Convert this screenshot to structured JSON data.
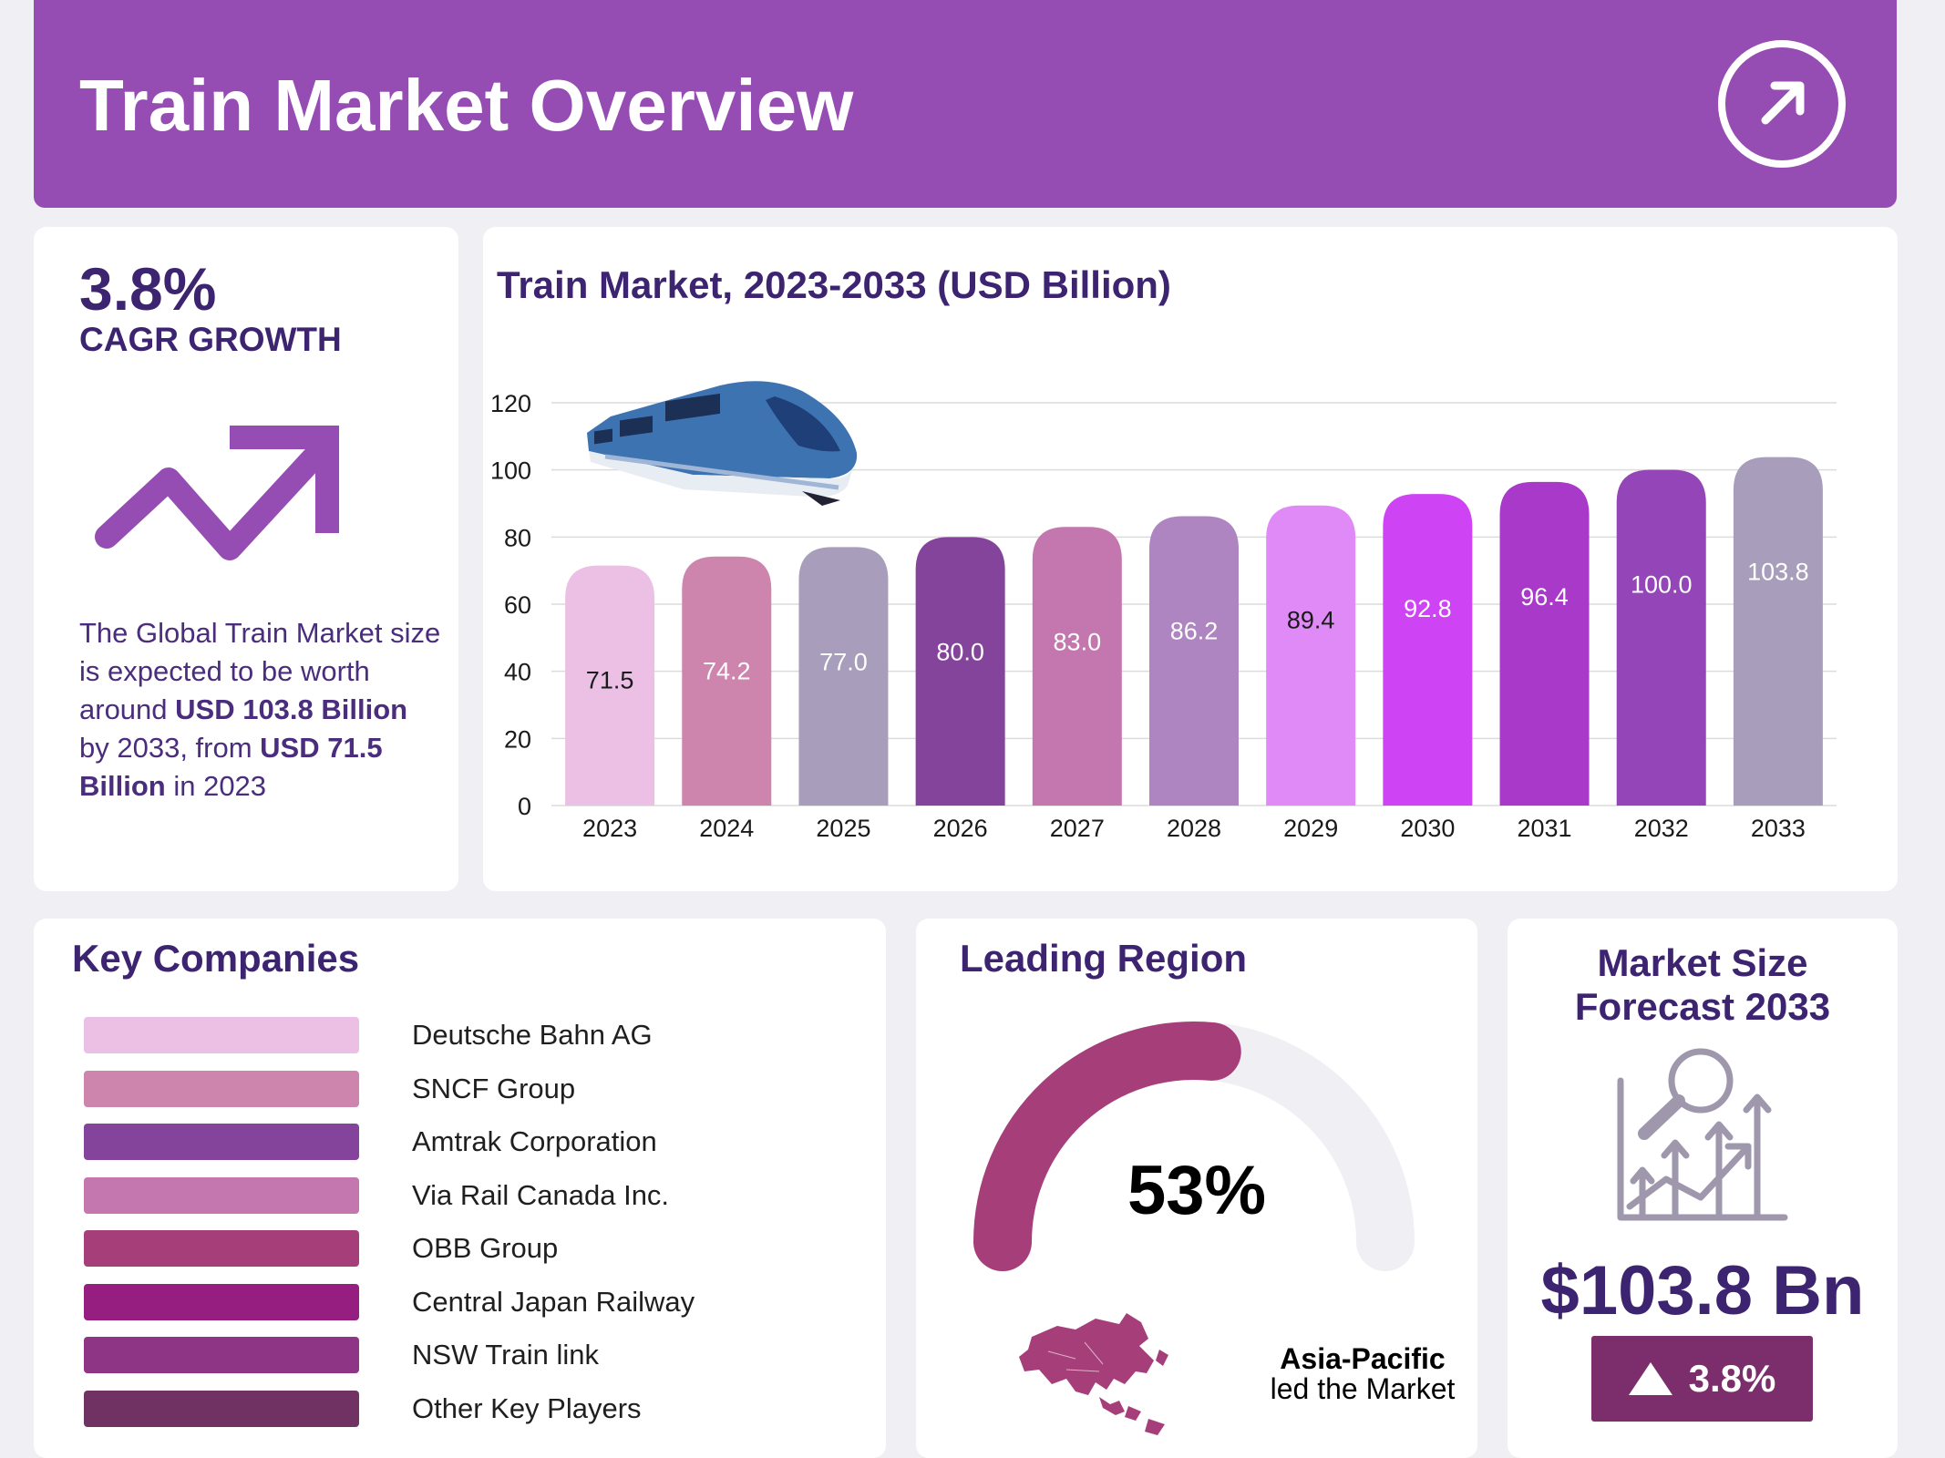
{
  "header": {
    "title": "Train Market Overview",
    "icon": "arrow-up-right-icon"
  },
  "cagr": {
    "value": "3.8%",
    "label": "CAGR GROWTH",
    "icon": "trend-up-icon",
    "desc": {
      "part1": "The Global Train Market size is expected to be worth around ",
      "bold1": "USD 103.8 Billion",
      "part2": " by 2033, from ",
      "bold2": "USD 71.5 Billion",
      "part3": " in 2023"
    }
  },
  "chart_data": {
    "type": "bar",
    "title": "Train Market, 2023-2033 (USD Billion)",
    "categories": [
      "2023",
      "2024",
      "2025",
      "2026",
      "2027",
      "2028",
      "2029",
      "2030",
      "2031",
      "2032",
      "2033"
    ],
    "values": [
      71.5,
      74.2,
      77.0,
      80.0,
      83.0,
      86.2,
      89.4,
      92.8,
      96.4,
      100.0,
      103.8
    ],
    "value_labels": [
      "71.5",
      "74.2",
      "77.0",
      "80.0",
      "83.0",
      "86.2",
      "89.4",
      "92.8",
      "96.4",
      "100.0",
      "103.8"
    ],
    "colors": [
      "#ecc0e4",
      "#cd85ad",
      "#a89dba",
      "#85449c",
      "#c477ae",
      "#ae84c1",
      "#e08af8",
      "#ce43f4",
      "#a839c9",
      "#9445b7",
      "#a89dba"
    ],
    "label_colors": [
      "#1a1a1a",
      "#ffffff",
      "#ffffff",
      "#ffffff",
      "#ffffff",
      "#ffffff",
      "#1a1a1a",
      "#ffffff",
      "#ffffff",
      "#ffffff",
      "#ffffff"
    ],
    "yticks": [
      "0",
      "20",
      "40",
      "60",
      "80",
      "100",
      "120"
    ],
    "ylim": [
      0,
      120
    ],
    "xlabel": "",
    "ylabel": "",
    "grid": true
  },
  "companies": {
    "title": "Key Companies",
    "items": [
      {
        "name": "Deutsche Bahn AG",
        "color": "#ecc0e4"
      },
      {
        "name": "SNCF Group",
        "color": "#cd85ad"
      },
      {
        "name": "Amtrak Corporation",
        "color": "#85449c"
      },
      {
        "name": "Via Rail Canada Inc.",
        "color": "#c477ae"
      },
      {
        "name": "OBB Group",
        "color": "#a63e7a"
      },
      {
        "name": "Central Japan Railway",
        "color": "#951e80"
      },
      {
        "name": "NSW Train link",
        "color": "#8f3586"
      },
      {
        "name": "Other Key Players",
        "color": "#703263"
      }
    ]
  },
  "region": {
    "title": "Leading Region",
    "share": 53,
    "share_label": "53%",
    "name": "Asia-Pacific",
    "sub": "led the Market",
    "gauge_color": "#a63e7a",
    "track_color": "#f0eff4"
  },
  "forecast": {
    "title_line1": "Market Size",
    "title_line2": "Forecast 2033",
    "value": "$103.8 Bn",
    "growth": "3.8%",
    "icon": "growth-chart-icon"
  }
}
